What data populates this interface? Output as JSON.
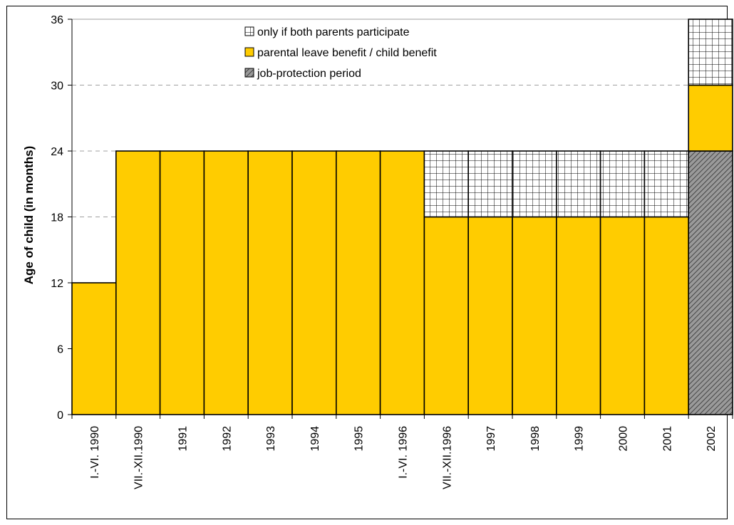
{
  "chart_data": {
    "type": "bar",
    "ylabel": "Age of child (in months)",
    "xlabel": "",
    "ylim": [
      0,
      36
    ],
    "yticks": [
      0,
      6,
      12,
      18,
      24,
      30,
      36
    ],
    "categories": [
      "I.-VI. 1990",
      "VII.-XII.1990",
      "1991",
      "1992",
      "1993",
      "1994",
      "1995",
      "I.-VI. 1996",
      "VII.-XII.1996",
      "1997",
      "1998",
      "1999",
      "2000",
      "2001",
      "2002"
    ],
    "series": [
      {
        "name": "job-protection period",
        "pattern": "diagonal-hatch",
        "values": [
          0,
          0,
          0,
          0,
          0,
          0,
          0,
          0,
          0,
          0,
          0,
          0,
          0,
          0,
          24
        ]
      },
      {
        "name": "parental leave benefit / child benefit",
        "color": "#ffcc00",
        "values": [
          12,
          24,
          24,
          24,
          24,
          24,
          24,
          24,
          18,
          18,
          18,
          18,
          18,
          18,
          6
        ]
      },
      {
        "name": "only if both parents participate",
        "pattern": "grid",
        "values": [
          0,
          0,
          0,
          0,
          0,
          0,
          0,
          0,
          6,
          6,
          6,
          6,
          6,
          6,
          6
        ]
      }
    ],
    "legend": {
      "placement": "top-center",
      "order": [
        "only if both parents participate",
        "parental leave benefit / child benefit",
        "job-protection period"
      ]
    },
    "grid": "dashed horizontal, partial"
  }
}
